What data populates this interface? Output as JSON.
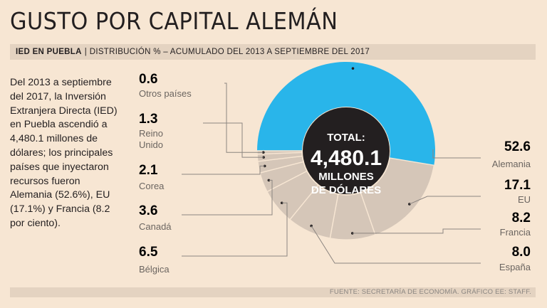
{
  "title": "GUSTO POR CAPITAL ALEMÁN",
  "subtitle": {
    "tag": "IED EN PUEBLA",
    "separator": "|",
    "text": "DISTRIBUCIÓN % – ACUMULADO DEL 2013 A SEPTIEMBRE DEL 2017"
  },
  "body_text": "Del 2013 a septiembre del 2017, la Inversión Extranjera Directa (IED) en Puebla ascendió a 4,480.1 millones de dólares; los principales países que inyectaron recursos fueron Alemania (52.6%), EU (17.1%) y Francia (8.2 por ciento).",
  "footer": "FUENTE: SECRETARÍA DE ECONOMÍA. GRÁFICO EE: STAFF.",
  "colors": {
    "highlight": "#29b5ea",
    "others": "#d5c6b8",
    "center": "#231f20",
    "background": "#f7e6d3",
    "leader": "#8c8580"
  },
  "chart_data": {
    "type": "pie",
    "style": "donut",
    "center_label": {
      "line1": "TOTAL:",
      "value": "4,480.1",
      "line2": "MILLONES",
      "line3": "DE DÓLARES"
    },
    "unit": "%",
    "slices": [
      {
        "value": 52.6,
        "value_label": "52.6",
        "label": [
          "Alemania"
        ],
        "highlight": true
      },
      {
        "value": 17.1,
        "value_label": "17.1",
        "label": [
          "EU"
        ],
        "highlight": false
      },
      {
        "value": 8.2,
        "value_label": "8.2",
        "label": [
          "Francia"
        ],
        "highlight": false
      },
      {
        "value": 8.0,
        "value_label": "8.0",
        "label": [
          "España"
        ],
        "highlight": false
      },
      {
        "value": 6.5,
        "value_label": "6.5",
        "label": [
          "Bélgica"
        ],
        "highlight": false
      },
      {
        "value": 3.6,
        "value_label": "3.6",
        "label": [
          "Canadá"
        ],
        "highlight": false
      },
      {
        "value": 2.1,
        "value_label": "2.1",
        "label": [
          "Corea"
        ],
        "highlight": false
      },
      {
        "value": 1.3,
        "value_label": "1.3",
        "label": [
          "Reino",
          "Unido"
        ],
        "highlight": false
      },
      {
        "value": 0.6,
        "value_label": "0.6",
        "label": [
          "Otros países"
        ],
        "highlight": false
      }
    ]
  }
}
